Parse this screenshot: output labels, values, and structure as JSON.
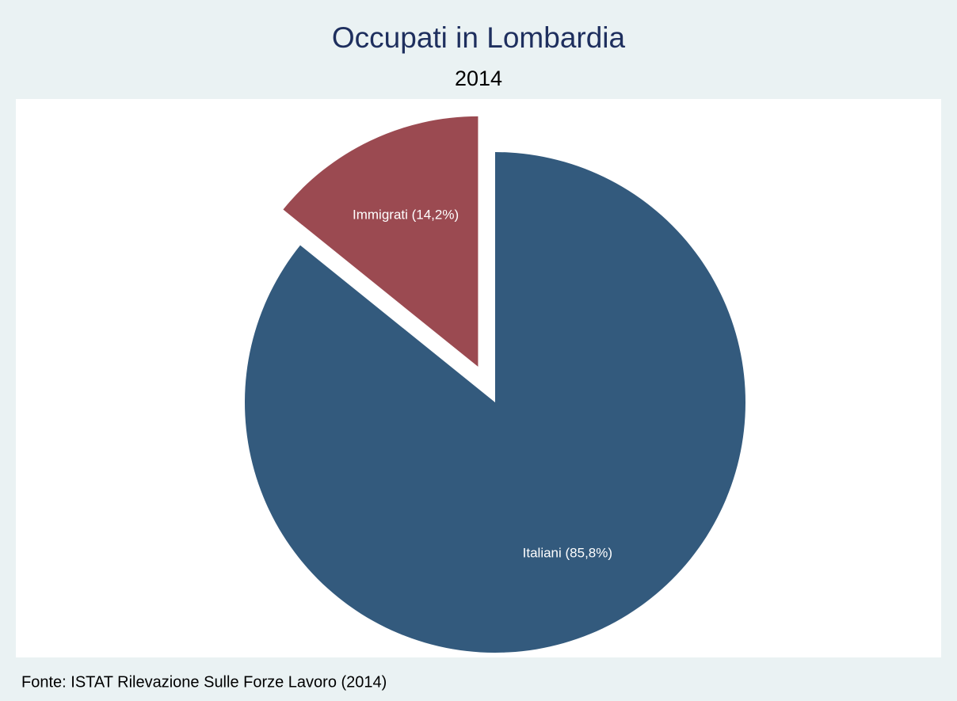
{
  "chart_data": {
    "type": "pie",
    "title": "Occupati in Lombardia",
    "subtitle": "2014",
    "values": [
      85.8,
      14.2
    ],
    "value_labels": [
      "Italiani (85,8%)",
      "Immigrati (14,2%)"
    ],
    "colors": [
      "#335a7d",
      "#9b4a51"
    ],
    "note": "Fonte: ISTAT Rilevazione Sulle Forze Lavoro (2014)"
  }
}
